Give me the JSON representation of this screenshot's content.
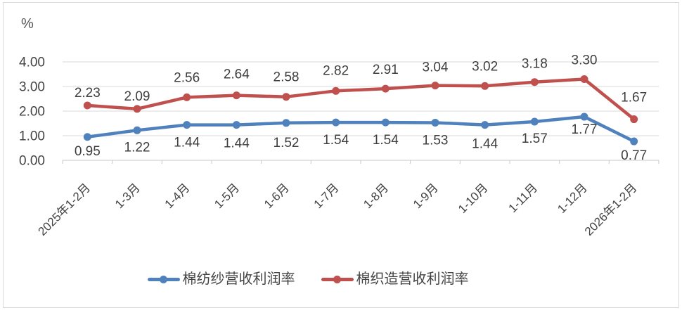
{
  "unit_label": "%",
  "chart_data": {
    "type": "line",
    "title": "",
    "xlabel": "",
    "ylabel": "%",
    "categories": [
      "2025年1-2月",
      "1-3月",
      "1-4月",
      "1-5月",
      "1-6月",
      "1-7月",
      "1-8月",
      "1-9月",
      "1-10月",
      "1-11月",
      "1-12月",
      "2026年1-2月"
    ],
    "series": [
      {
        "name": "棉纺纱营收利润率",
        "color": "#4F81BD",
        "label_position": "below",
        "values": [
          0.95,
          1.22,
          1.44,
          1.44,
          1.52,
          1.54,
          1.54,
          1.53,
          1.44,
          1.57,
          1.77,
          0.77
        ]
      },
      {
        "name": "棉织造营收利润率",
        "color": "#C0504D",
        "label_position": "above",
        "values": [
          2.23,
          2.09,
          2.56,
          2.64,
          2.58,
          2.82,
          2.91,
          3.04,
          3.02,
          3.18,
          3.3,
          1.67
        ]
      }
    ],
    "ylim": [
      0,
      4
    ],
    "y_ticks": [
      "0.00",
      "1.00",
      "2.00",
      "3.00",
      "4.00"
    ],
    "grid": true,
    "data_labels": true,
    "label_decimals": 2,
    "legend_position": "bottom",
    "grid_color": "#D9D9D9",
    "axis_color": "#C8C8C8",
    "frame_color": "#D9D9D9",
    "text_color": "#444444"
  }
}
